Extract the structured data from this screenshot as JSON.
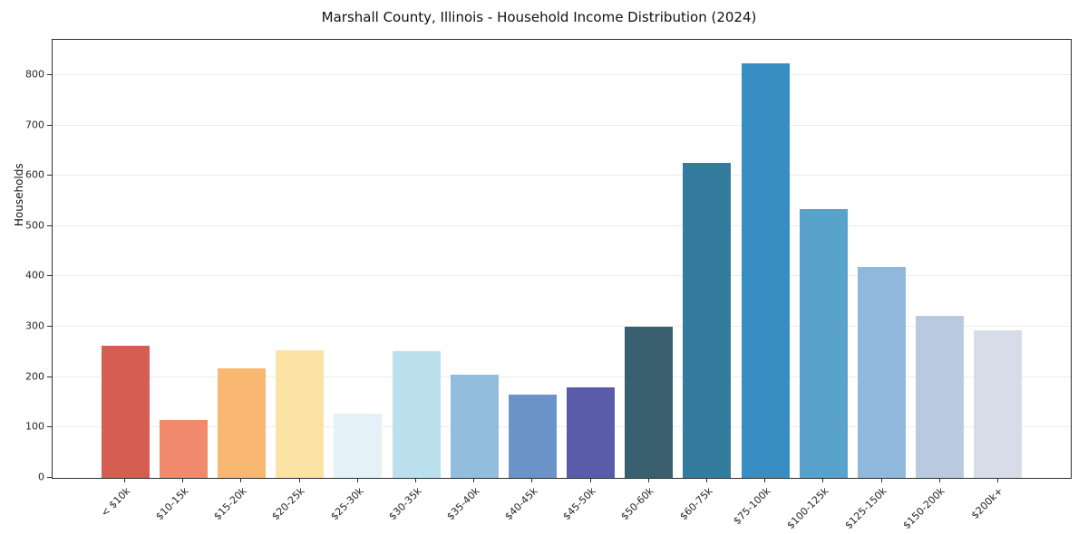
{
  "chart_data": {
    "type": "bar",
    "title": "Marshall County, Illinois - Household Income Distribution (2024)",
    "xlabel": "",
    "ylabel": "Households",
    "categories": [
      "< $10k",
      "$10-15k",
      "$15-20k",
      "$20-25k",
      "$25-30k",
      "$30-35k",
      "$35-40k",
      "$40-45k",
      "$45-50k",
      "$50-60k",
      "$60-75k",
      "$75-100k",
      "$100-125k",
      "$125-150k",
      "$150-200k",
      "$200k+"
    ],
    "values": [
      263,
      115,
      218,
      253,
      128,
      252,
      205,
      165,
      180,
      301,
      625,
      823,
      533,
      418,
      322,
      293
    ],
    "bar_colors": [
      "#d65d52",
      "#f1896c",
      "#f8b871",
      "#fbe3a6",
      "#e4f1f6",
      "#badfed",
      "#92bddc",
      "#6c93c8",
      "#5a5caa",
      "#3a606f",
      "#337c9e",
      "#388ec3",
      "#58a2cb",
      "#8fb8da",
      "#b9c9e0",
      "#d8dbe8"
    ],
    "yticks": [
      0,
      100,
      200,
      300,
      400,
      500,
      600,
      700,
      800
    ],
    "ylim": [
      0,
      870
    ],
    "grid": "horizontal",
    "legend": "none",
    "spine_color": "#2e2e2e",
    "grid_color": "#ececec",
    "background_color": "#ffffff"
  }
}
